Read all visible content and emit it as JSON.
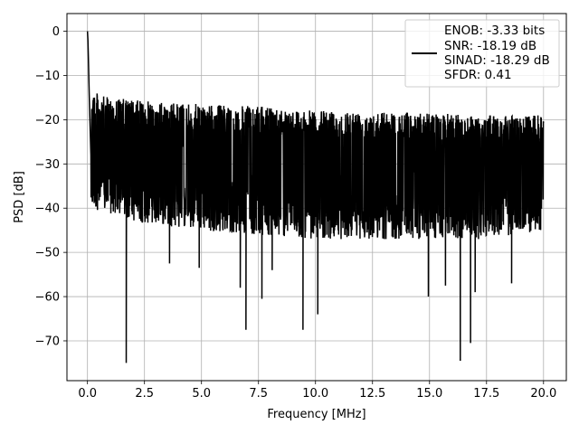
{
  "chart_data": {
    "type": "line",
    "title": "",
    "xlabel": "Frequency [MHz]",
    "ylabel": "PSD [dB]",
    "xlim": [
      -0.9,
      21.0
    ],
    "ylim": [
      -79,
      4
    ],
    "x_ticks": [
      0.0,
      2.5,
      5.0,
      7.5,
      10.0,
      12.5,
      15.0,
      17.5,
      20.0
    ],
    "x_tick_labels": [
      "0.0",
      "2.5",
      "5.0",
      "7.5",
      "10.0",
      "12.5",
      "15.0",
      "17.5",
      "20.0"
    ],
    "y_ticks": [
      0,
      -10,
      -20,
      -30,
      -40,
      -50,
      -60,
      -70
    ],
    "y_tick_labels": [
      "0",
      "−10",
      "−20",
      "−30",
      "−40",
      "−50",
      "−60",
      "−70"
    ],
    "grid": true,
    "legend_placement": "top-right",
    "line_color": "#000000",
    "legend_lines": [
      "ENOB: -3.33 bits",
      "SNR: -18.19 dB",
      "SINAD: -18.29 dB",
      "SFDR: 0.41"
    ],
    "series": [
      {
        "x_start": 0.0,
        "x_end": 20.0,
        "peak": [
          [
            0.0,
            0
          ],
          [
            0.02,
            -2
          ],
          [
            0.04,
            -6
          ],
          [
            0.08,
            -15
          ],
          [
            0.15,
            -28
          ]
        ],
        "upper_envelope": [
          [
            0.15,
            -12
          ],
          [
            0.5,
            -14.5
          ],
          [
            1.0,
            -15
          ],
          [
            2.0,
            -15.5
          ],
          [
            3.0,
            -16
          ],
          [
            5.0,
            -16.5
          ],
          [
            7.5,
            -17
          ],
          [
            10.0,
            -18
          ],
          [
            12.5,
            -18
          ],
          [
            15.0,
            -18.5
          ],
          [
            17.5,
            -19
          ],
          [
            20.0,
            -19
          ]
        ],
        "lower_envelope": [
          [
            0.15,
            -40
          ],
          [
            2.0,
            -43
          ],
          [
            5.0,
            -45
          ],
          [
            7.5,
            -46
          ],
          [
            10.0,
            -47
          ],
          [
            12.5,
            -47
          ],
          [
            15.0,
            -47
          ],
          [
            17.5,
            -47
          ],
          [
            20.0,
            -45
          ]
        ],
        "notable_dips": [
          {
            "x": 1.7,
            "y": -75
          },
          {
            "x": 6.95,
            "y": -67.5
          },
          {
            "x": 7.65,
            "y": -60.5
          },
          {
            "x": 9.45,
            "y": -67.5
          },
          {
            "x": 10.1,
            "y": -64
          },
          {
            "x": 14.95,
            "y": -60
          },
          {
            "x": 16.35,
            "y": -74.5
          },
          {
            "x": 16.8,
            "y": -70.5
          },
          {
            "x": 17.0,
            "y": -59
          },
          {
            "x": 18.6,
            "y": -57
          },
          {
            "x": 6.7,
            "y": -58
          },
          {
            "x": 4.9,
            "y": -53.5
          },
          {
            "x": 3.6,
            "y": -52.5
          },
          {
            "x": 8.1,
            "y": -54
          },
          {
            "x": 15.7,
            "y": -57.5
          }
        ]
      }
    ]
  }
}
